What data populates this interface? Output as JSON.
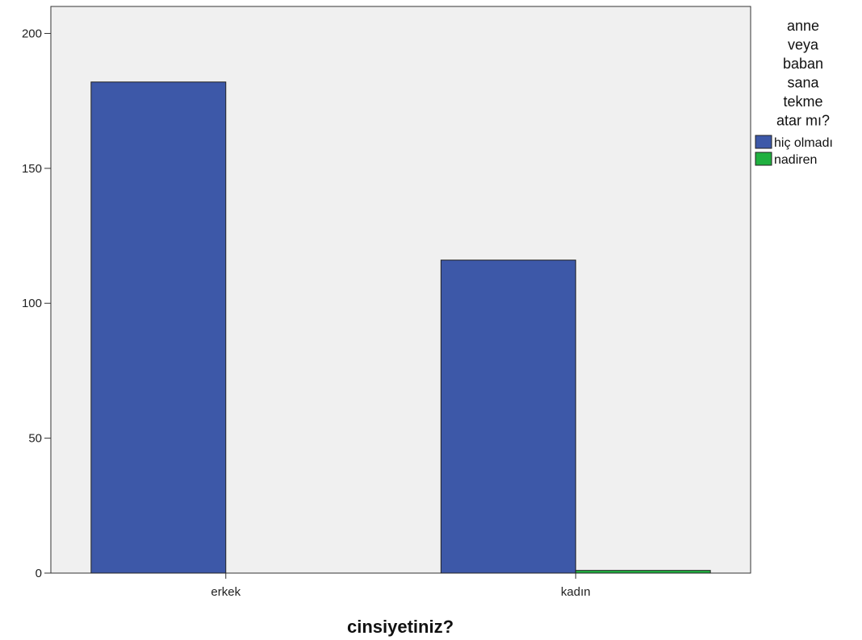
{
  "chart_data": {
    "type": "bar",
    "xlabel": "cinsiyetiniz?",
    "ylabel": "",
    "title": "",
    "categories": [
      "erkek",
      "kadın"
    ],
    "series": [
      {
        "name": "hiç olmadı",
        "color": "#3d58a8",
        "values": [
          182,
          116
        ]
      },
      {
        "name": "nadiren",
        "color": "#20b040",
        "values": [
          0,
          1
        ]
      }
    ],
    "ylim": [
      0,
      210
    ],
    "yticks": [
      0,
      50,
      100,
      150,
      200
    ],
    "legend": {
      "title_lines": [
        "anne",
        "veya",
        "baban",
        "sana",
        "tekme",
        "atar mı?"
      ],
      "position": "right"
    },
    "plot_background": "#f0f0f0",
    "grid": false
  }
}
